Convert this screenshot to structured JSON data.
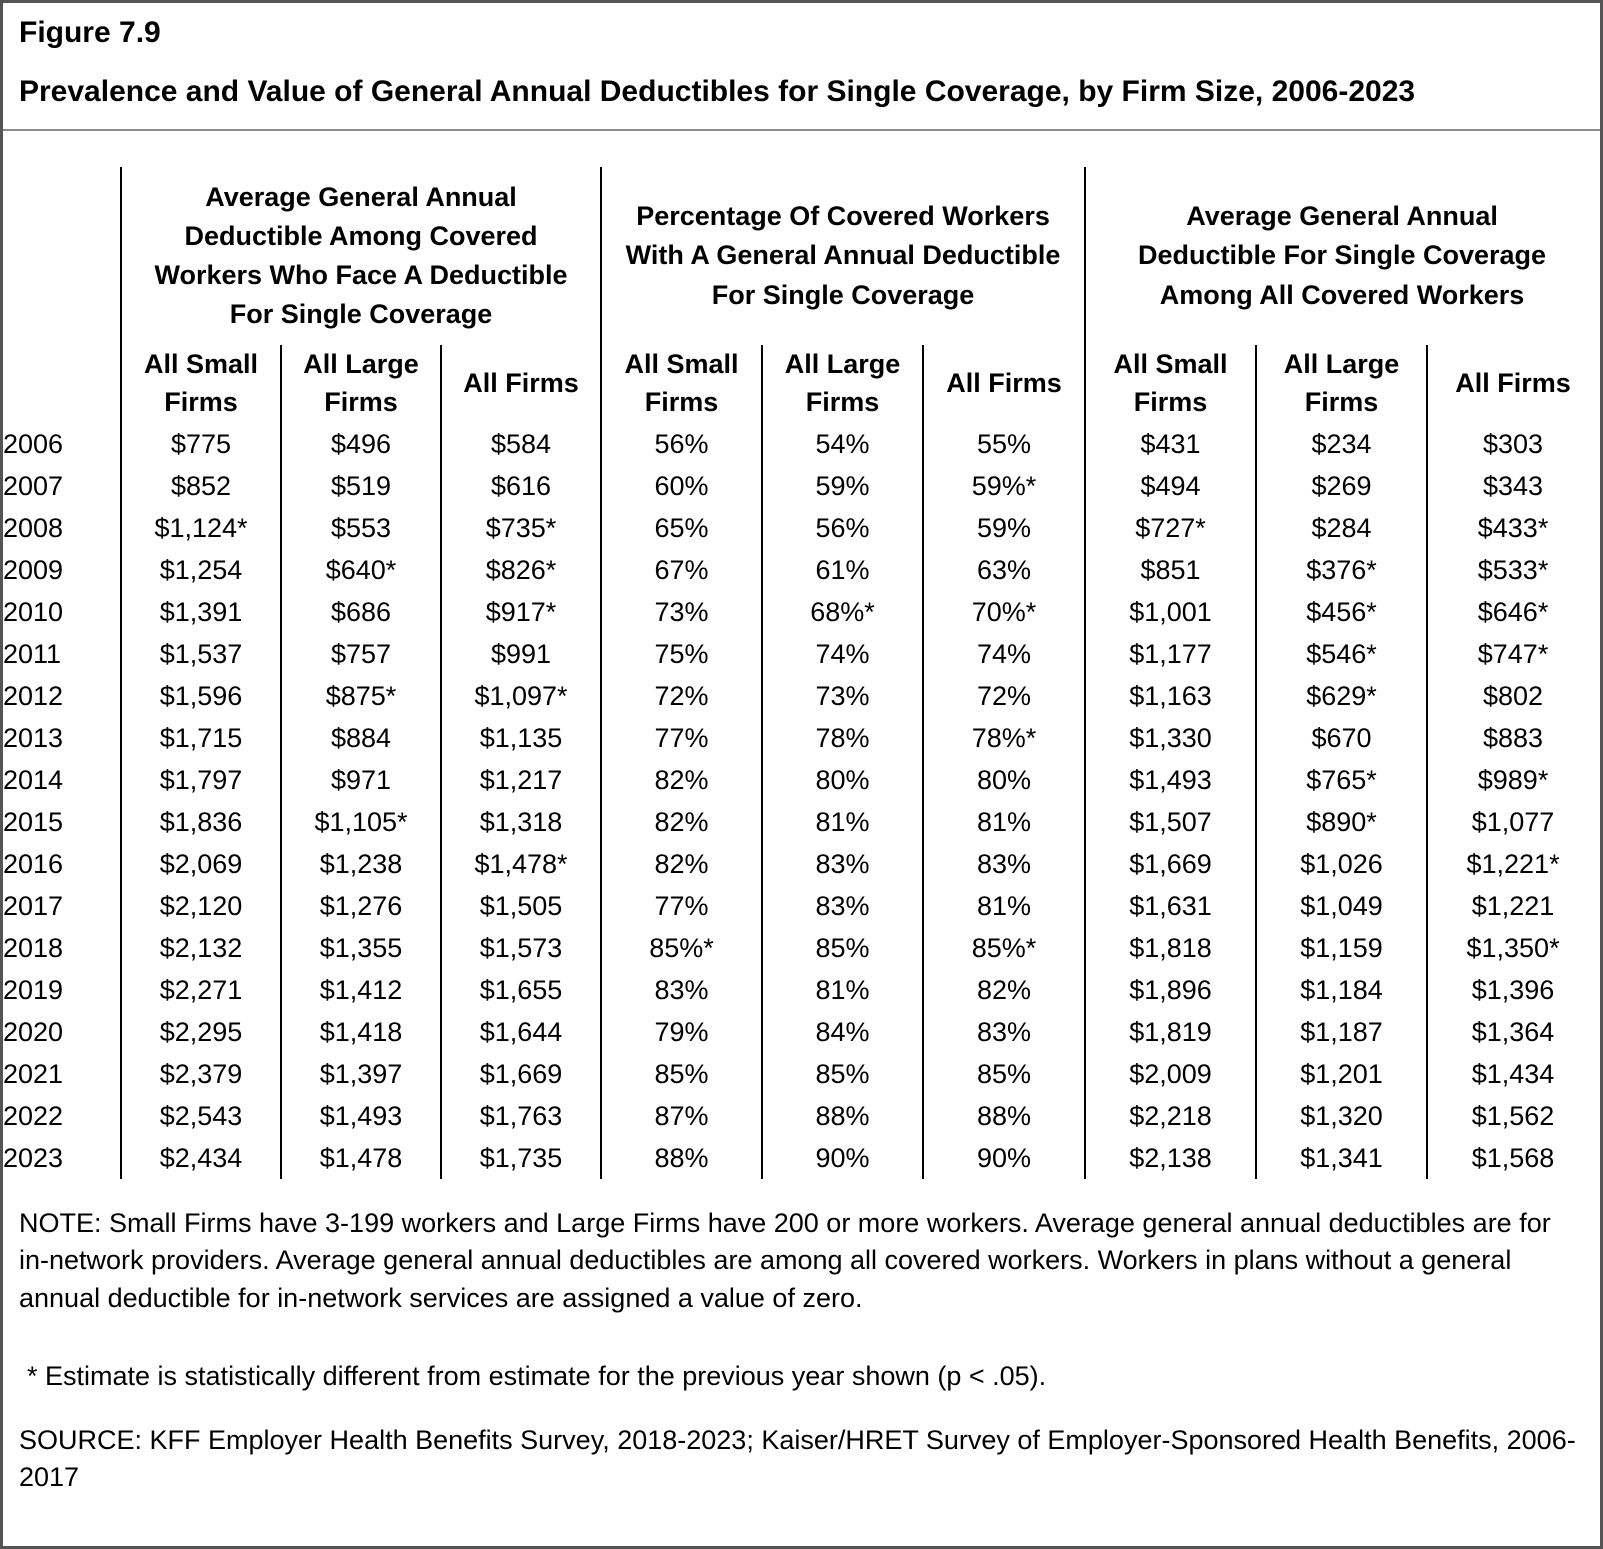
{
  "figure": {
    "label": "Figure 7.9",
    "title": "Prevalence and Value of General Annual Deductibles for Single Coverage, by Firm Size, 2006-2023"
  },
  "chart_data": {
    "type": "table",
    "title": "Prevalence and Value of General Annual Deductibles for Single Coverage, by Firm Size, 2006-2023",
    "column_groups": [
      {
        "header": "Average General Annual\nDeductible Among Covered\nWorkers Who Face A Deductible\nFor Single Coverage",
        "columns": [
          "All Small\nFirms",
          "All Large\nFirms",
          "All Firms"
        ]
      },
      {
        "header": "Percentage Of Covered Workers\nWith A General Annual Deductible\nFor Single Coverage",
        "columns": [
          "All Small\nFirms",
          "All Large\nFirms",
          "All Firms"
        ]
      },
      {
        "header": "Average General Annual\nDeductible For Single Coverage\nAmong All Covered Workers",
        "columns": [
          "All Small\nFirms",
          "All Large\nFirms",
          "All Firms"
        ]
      }
    ],
    "rows": [
      {
        "year": "2006",
        "values": [
          "$775",
          "$496",
          "$584",
          "56%",
          "54%",
          "55%",
          "$431",
          "$234",
          "$303"
        ]
      },
      {
        "year": "2007",
        "values": [
          "$852",
          "$519",
          "$616",
          "60%",
          "59%",
          "59%*",
          "$494",
          "$269",
          "$343"
        ]
      },
      {
        "year": "2008",
        "values": [
          "$1,124*",
          "$553",
          "$735*",
          "65%",
          "56%",
          "59%",
          "$727*",
          "$284",
          "$433*"
        ]
      },
      {
        "year": "2009",
        "values": [
          "$1,254",
          "$640*",
          "$826*",
          "67%",
          "61%",
          "63%",
          "$851",
          "$376*",
          "$533*"
        ]
      },
      {
        "year": "2010",
        "values": [
          "$1,391",
          "$686",
          "$917*",
          "73%",
          "68%*",
          "70%*",
          "$1,001",
          "$456*",
          "$646*"
        ]
      },
      {
        "year": "2011",
        "values": [
          "$1,537",
          "$757",
          "$991",
          "75%",
          "74%",
          "74%",
          "$1,177",
          "$546*",
          "$747*"
        ]
      },
      {
        "year": "2012",
        "values": [
          "$1,596",
          "$875*",
          "$1,097*",
          "72%",
          "73%",
          "72%",
          "$1,163",
          "$629*",
          "$802"
        ]
      },
      {
        "year": "2013",
        "values": [
          "$1,715",
          "$884",
          "$1,135",
          "77%",
          "78%",
          "78%*",
          "$1,330",
          "$670",
          "$883"
        ]
      },
      {
        "year": "2014",
        "values": [
          "$1,797",
          "$971",
          "$1,217",
          "82%",
          "80%",
          "80%",
          "$1,493",
          "$765*",
          "$989*"
        ]
      },
      {
        "year": "2015",
        "values": [
          "$1,836",
          "$1,105*",
          "$1,318",
          "82%",
          "81%",
          "81%",
          "$1,507",
          "$890*",
          "$1,077"
        ]
      },
      {
        "year": "2016",
        "values": [
          "$2,069",
          "$1,238",
          "$1,478*",
          "82%",
          "83%",
          "83%",
          "$1,669",
          "$1,026",
          "$1,221*"
        ]
      },
      {
        "year": "2017",
        "values": [
          "$2,120",
          "$1,276",
          "$1,505",
          "77%",
          "83%",
          "81%",
          "$1,631",
          "$1,049",
          "$1,221"
        ]
      },
      {
        "year": "2018",
        "values": [
          "$2,132",
          "$1,355",
          "$1,573",
          "85%*",
          "85%",
          "85%*",
          "$1,818",
          "$1,159",
          "$1,350*"
        ]
      },
      {
        "year": "2019",
        "values": [
          "$2,271",
          "$1,412",
          "$1,655",
          "83%",
          "81%",
          "82%",
          "$1,896",
          "$1,184",
          "$1,396"
        ]
      },
      {
        "year": "2020",
        "values": [
          "$2,295",
          "$1,418",
          "$1,644",
          "79%",
          "84%",
          "83%",
          "$1,819",
          "$1,187",
          "$1,364"
        ]
      },
      {
        "year": "2021",
        "values": [
          "$2,379",
          "$1,397",
          "$1,669",
          "85%",
          "85%",
          "85%",
          "$2,009",
          "$1,201",
          "$1,434"
        ]
      },
      {
        "year": "2022",
        "values": [
          "$2,543",
          "$1,493",
          "$1,763",
          "87%",
          "88%",
          "88%",
          "$2,218",
          "$1,320",
          "$1,562"
        ]
      },
      {
        "year": "2023",
        "values": [
          "$2,434",
          "$1,478",
          "$1,735",
          "88%",
          "90%",
          "90%",
          "$2,138",
          "$1,341",
          "$1,568"
        ]
      }
    ]
  },
  "notes": {
    "note": "NOTE: Small Firms have 3-199 workers and Large Firms have 200 or more workers. Average general annual deductibles are for in-network providers. Average general annual deductibles are among all covered workers. Workers in plans without a general annual deductible for in-network services are assigned a value of zero.",
    "significance": "* Estimate is statistically different from estimate for the previous year shown (p < .05).",
    "source": "SOURCE: KFF Employer Health Benefits Survey, 2018-2023; Kaiser/HRET Survey of Employer-Sponsored Health Benefits, 2006-2017"
  }
}
